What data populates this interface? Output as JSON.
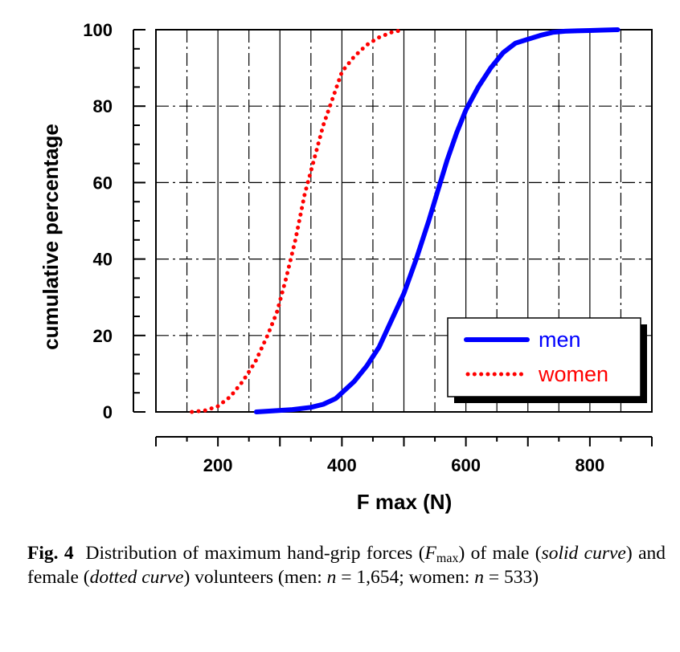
{
  "chart_data": {
    "type": "line",
    "title": "",
    "xlabel": "F max (N)",
    "ylabel": "cumulative percentage",
    "xlim": [
      100,
      900
    ],
    "ylim": [
      0,
      100
    ],
    "x_ticks": [
      200,
      400,
      600,
      800
    ],
    "x_tick_labels": [
      "200",
      "400",
      "600",
      "800"
    ],
    "y_ticks": [
      0,
      20,
      40,
      60,
      80,
      100
    ],
    "y_tick_labels": [
      "0",
      "20",
      "40",
      "60",
      "80",
      "100"
    ],
    "grid": true,
    "legend_position": "bottom-right",
    "series": [
      {
        "name": "men",
        "color": "#0000ff",
        "style": "solid",
        "points": [
          [
            262,
            0
          ],
          [
            290,
            0.3
          ],
          [
            320,
            0.6
          ],
          [
            350,
            1.2
          ],
          [
            370,
            2
          ],
          [
            390,
            3.5
          ],
          [
            400,
            5
          ],
          [
            420,
            8
          ],
          [
            440,
            12
          ],
          [
            460,
            17
          ],
          [
            480,
            24
          ],
          [
            500,
            31
          ],
          [
            520,
            40
          ],
          [
            540,
            50
          ],
          [
            555,
            58
          ],
          [
            570,
            66
          ],
          [
            585,
            73
          ],
          [
            600,
            79
          ],
          [
            620,
            85
          ],
          [
            640,
            90
          ],
          [
            660,
            94
          ],
          [
            680,
            96.5
          ],
          [
            700,
            97.5
          ],
          [
            720,
            98.5
          ],
          [
            740,
            99.3
          ],
          [
            760,
            99.6
          ],
          [
            780,
            99.7
          ],
          [
            800,
            99.8
          ],
          [
            820,
            99.9
          ],
          [
            845,
            100
          ]
        ]
      },
      {
        "name": "women",
        "color": "#ff0000",
        "style": "dotted",
        "points": [
          [
            158,
            0
          ],
          [
            180,
            0.4
          ],
          [
            200,
            1.5
          ],
          [
            220,
            4
          ],
          [
            240,
            8
          ],
          [
            260,
            13
          ],
          [
            280,
            20
          ],
          [
            295,
            26
          ],
          [
            310,
            35
          ],
          [
            325,
            45
          ],
          [
            340,
            57
          ],
          [
            355,
            66
          ],
          [
            370,
            75
          ],
          [
            385,
            82
          ],
          [
            400,
            89
          ],
          [
            420,
            93
          ],
          [
            440,
            96
          ],
          [
            460,
            98
          ],
          [
            480,
            99.3
          ],
          [
            500,
            100
          ]
        ]
      }
    ]
  },
  "caption": {
    "label": "Fig. 4",
    "text_1": "Distribution of maximum hand-grip forces (",
    "f_symbol": "F",
    "f_subscript": "max",
    "text_2": ") of male (",
    "solid_curve": "solid curve",
    "text_3": ") and female (",
    "dotted_curve": "dotted curve",
    "text_4": ") volunteers (men: ",
    "n_1": "n",
    "text_5": " = 1,654; women: ",
    "n_2": "n",
    "text_6": " = 533)"
  }
}
